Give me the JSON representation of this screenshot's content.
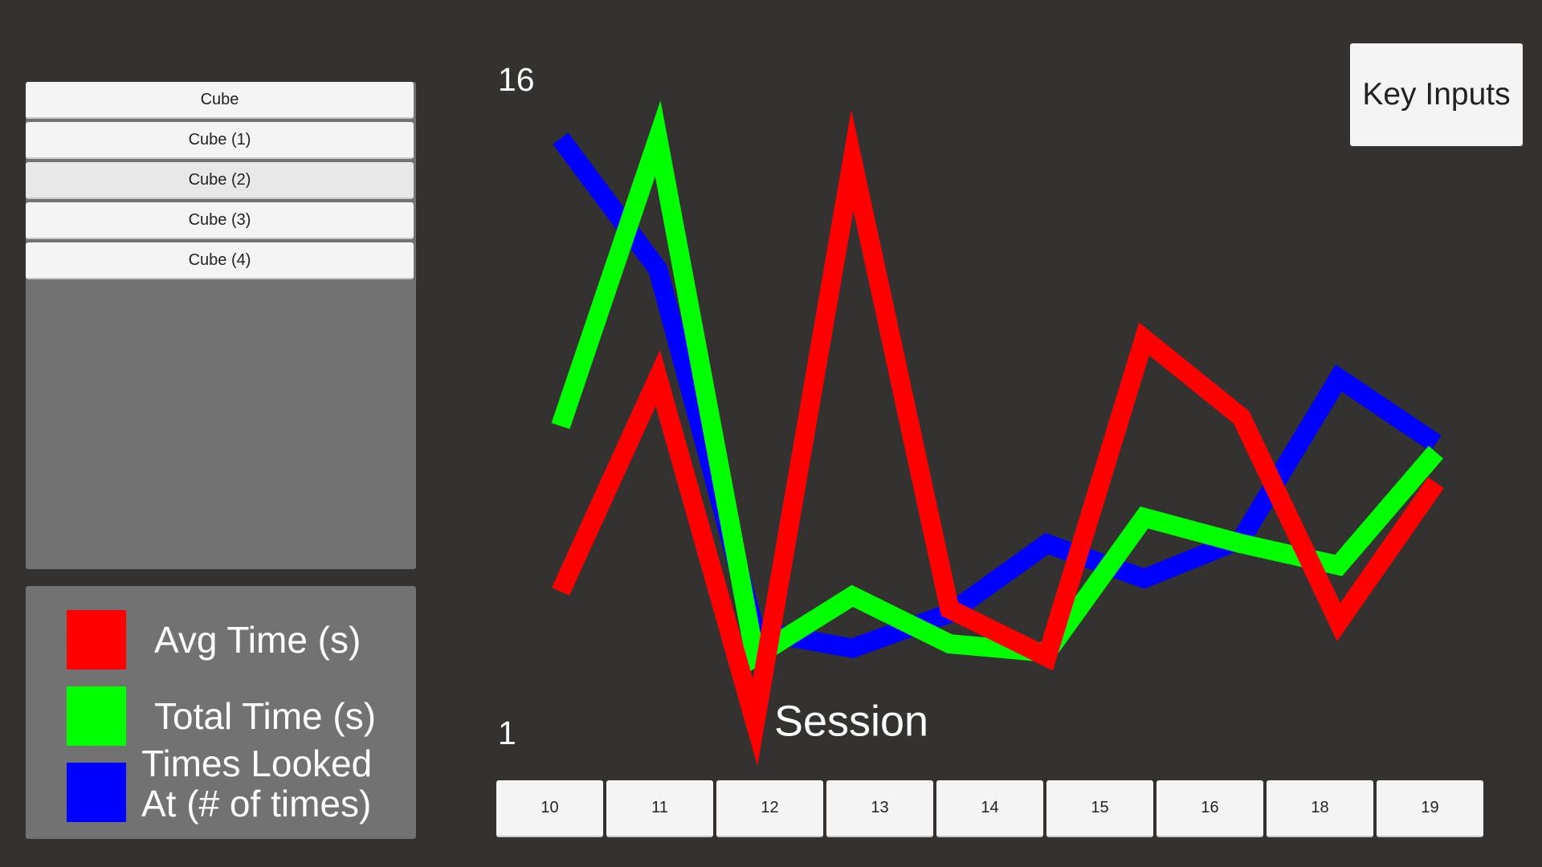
{
  "object_list": [
    "Cube",
    "Cube (1)",
    "Cube (2)",
    "Cube (3)",
    "Cube (4)"
  ],
  "key_inputs_button": "Key Inputs",
  "session_buttons": [
    "10",
    "11",
    "12",
    "13",
    "14",
    "15",
    "16",
    "18",
    "19"
  ],
  "chart_data": {
    "type": "line",
    "xlabel": "Session",
    "ylim": [
      1,
      16
    ],
    "yticks": [
      1,
      16
    ],
    "series": [
      {
        "name": "Avg Time (s)",
        "color": "#ff0000",
        "values": [
          4.3,
          9.2,
          1.3,
          14.2,
          3.9,
          2.8,
          10.1,
          8.3,
          3.6,
          6.8
        ]
      },
      {
        "name": "Total Time (s)",
        "color": "#00ff00",
        "values": [
          8.1,
          14.7,
          2.8,
          4.2,
          3.1,
          2.9,
          6.0,
          5.4,
          4.9,
          7.5
        ]
      },
      {
        "name": "Times Looked At (# of times)",
        "color": "#0000ff",
        "values": [
          14.7,
          11.7,
          3.4,
          3.0,
          3.8,
          5.4,
          4.6,
          5.5,
          9.2,
          7.7
        ]
      }
    ]
  }
}
